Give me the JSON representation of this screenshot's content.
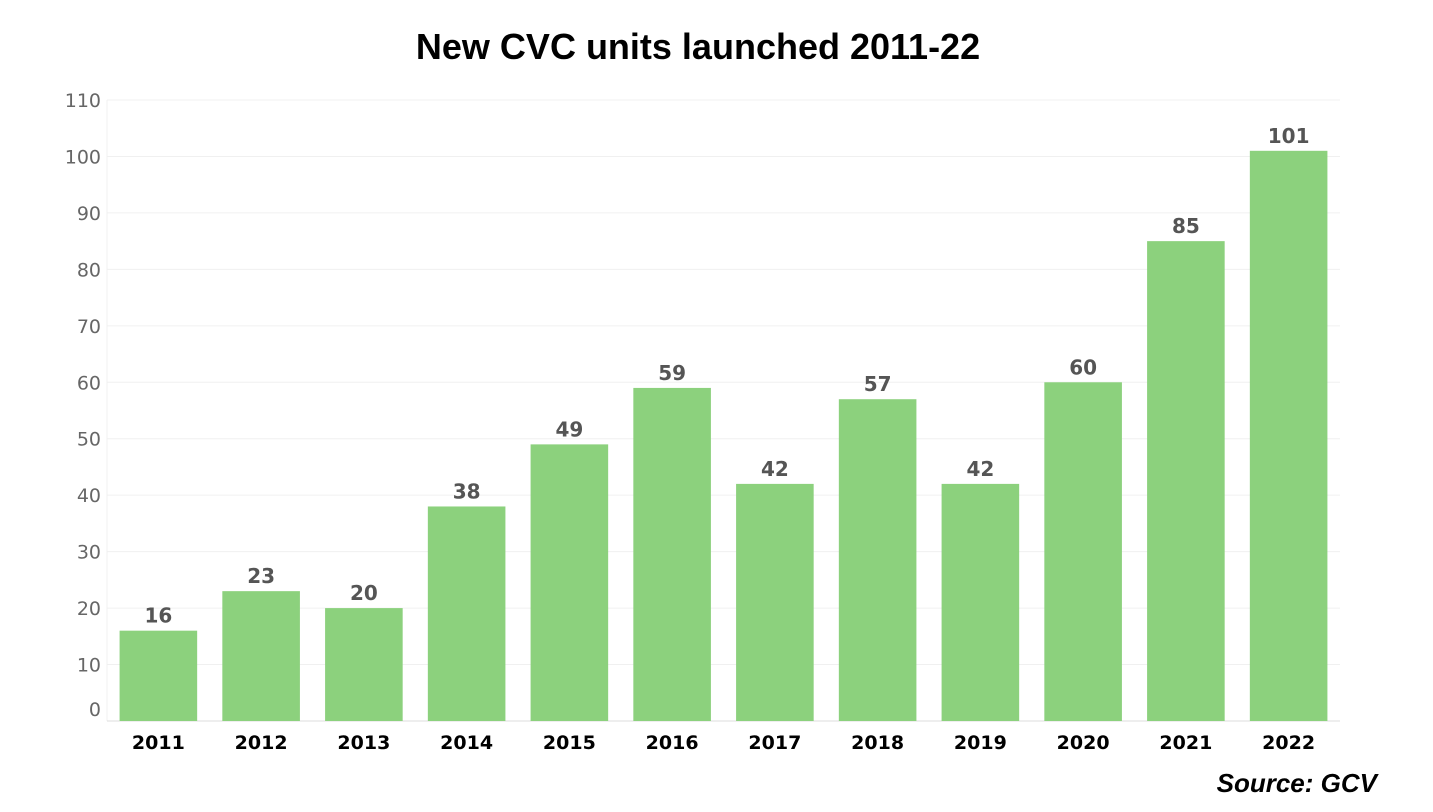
{
  "chart_data": {
    "type": "bar",
    "title": "New CVC units launched 2011-22",
    "source": "Source: GCV",
    "categories": [
      "2011",
      "2012",
      "2013",
      "2014",
      "2015",
      "2016",
      "2017",
      "2018",
      "2019",
      "2020",
      "2021",
      "2022"
    ],
    "values": [
      16,
      23,
      20,
      38,
      49,
      59,
      42,
      57,
      42,
      60,
      85,
      101
    ],
    "ylim": [
      0,
      110
    ],
    "yticks": [
      0,
      10,
      20,
      30,
      40,
      50,
      60,
      70,
      80,
      90,
      100,
      110
    ],
    "xlabel": "",
    "ylabel": "",
    "grid": true,
    "legend": "none",
    "data_labels": true,
    "colors": {
      "bar": "#8cd17d",
      "grid": "#f0f0f0",
      "axis": "#dcdcdc",
      "data_label": "#555555",
      "y_tick": "#666666",
      "x_tick": "#000000"
    }
  }
}
